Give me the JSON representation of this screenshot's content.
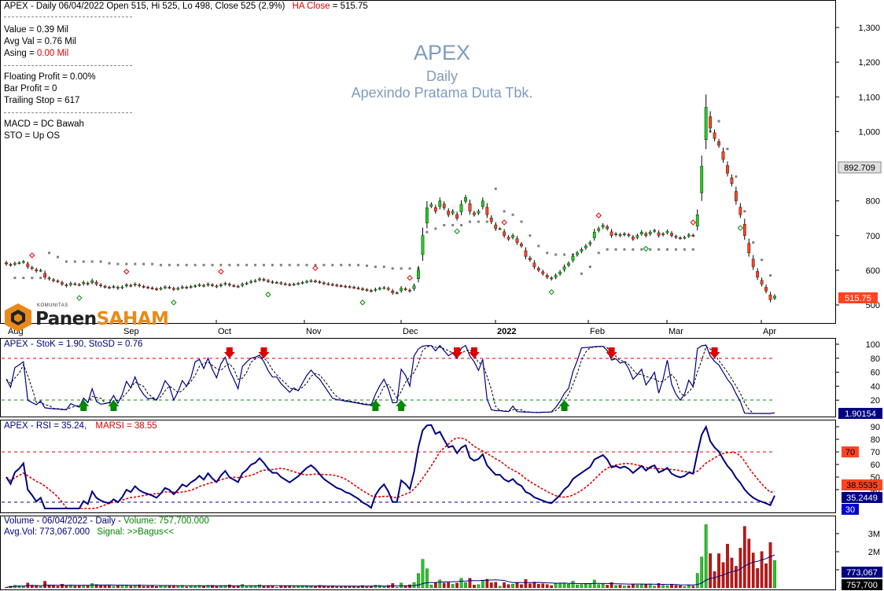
{
  "header": {
    "ohlc": "APEX - Daily 06/04/2022 Open 515, Hi 525, Lo 498, Close 525 (2.9%)",
    "ha_close_label": "HA Close",
    "ha_close_value": "= 515.75"
  },
  "info_panel": {
    "value": "Value = 0.39 Mil",
    "avg_val": "Avg Val = 0.76 Mil",
    "asing_label": "Asing = ",
    "asing_value": "0.00 Mil",
    "floating_profit": "Floating Profit = 0.00%",
    "bar_profit": "Bar Profit = 0",
    "trailing_stop": "Trailing Stop = 617",
    "macd": "MACD =  DC Bawah",
    "sto": "STO  =  Up OS"
  },
  "watermark": {
    "ticker": "APEX",
    "period": "Daily",
    "company": "Apexindo Pratama Duta Tbk."
  },
  "logo": {
    "community": "KOMUNITAS",
    "brand_a": "Panen",
    "brand_b": "SAHAM"
  },
  "colors": {
    "up": "#22cc22",
    "down": "#ff4422",
    "stoch": "#000080",
    "marsi": "#dd0000",
    "grid_red": "#dd0000",
    "grid_green": "#008800",
    "sar": "#808080"
  },
  "chart_data": [
    {
      "type": "candlestick",
      "panel": "price",
      "y_ticks": [
        "1,300",
        "1,200",
        "1,100",
        "1,000",
        "800",
        "700",
        "600",
        "500"
      ],
      "ylim": [
        480,
        1330
      ],
      "x_labels": [
        "Aug",
        "Sep",
        "Oct",
        "Nov",
        "Dec",
        "2022",
        "Feb",
        "Mar",
        "Apr"
      ],
      "markers": {
        "last_price": "515.75",
        "sar_level": "892.709"
      },
      "close": [
        618,
        615,
        620,
        622,
        625,
        610,
        605,
        598,
        600,
        580,
        575,
        570,
        568,
        560,
        555,
        562,
        560,
        558,
        565,
        560,
        570,
        560,
        555,
        552,
        550,
        553,
        548,
        552,
        558,
        555,
        560,
        555,
        552,
        550,
        548,
        545,
        548,
        552,
        550,
        545,
        548,
        552,
        550,
        553,
        555,
        558,
        555,
        560,
        556,
        553,
        558,
        562,
        557,
        555,
        553,
        560,
        563,
        568,
        570,
        575,
        572,
        568,
        565,
        565,
        562,
        560,
        558,
        560,
        562,
        565,
        568,
        570,
        568,
        565,
        562,
        560,
        558,
        556,
        555,
        553,
        552,
        550,
        548,
        545,
        543,
        540,
        545,
        548,
        550,
        545,
        535,
        535,
        548,
        545,
        540,
        555,
        600,
        700,
        780,
        790,
        770,
        800,
        780,
        760,
        770,
        750,
        790,
        810,
        770,
        760,
        770,
        800,
        760,
        740,
        720,
        720,
        700,
        690,
        700,
        680,
        670,
        640,
        630,
        610,
        600,
        590,
        580,
        575,
        585,
        595,
        610,
        620,
        640,
        650,
        660,
        670,
        680,
        710,
        720,
        730,
        720,
        700,
        705,
        700,
        705,
        700,
        690,
        700,
        710,
        700,
        710,
        715,
        700,
        705,
        712,
        700,
        695,
        692,
        695,
        702,
        700,
        760,
        900,
        1070,
        1010,
        980,
        960,
        920,
        880,
        850,
        800,
        760,
        700,
        650,
        610,
        580,
        560,
        540,
        515,
        525
      ],
      "stoch_k": {
        "label": "APEX - StoK = 1.90, StoSD = 0.76",
        "last": "1.90154",
        "levels": [
          80,
          20
        ],
        "y_ticks": [
          "100",
          "80",
          "60",
          "40",
          "20"
        ]
      },
      "rsi": {
        "label": "APEX - RSI = 35.24,",
        "marsi_label": "MARSI = 38.55",
        "last_rsi": "35.2449",
        "last_marsi": "38.5535",
        "levels": [
          "70",
          "30"
        ],
        "y_ticks": [
          "90",
          "80",
          "70",
          "60",
          "50",
          "40"
        ]
      },
      "volume": {
        "label": "Volume - 06/04/2022 - Daily - ",
        "volume_text": "Volume: 757,700.000",
        "avg_vol": "Avg.Vol: 773,067.000",
        "signal": "Signal: >>Bagus<<",
        "y_ticks": [
          "3M",
          "2M",
          "1M"
        ],
        "last_avg": "773,067",
        "last_vol": "757,700"
      }
    }
  ]
}
